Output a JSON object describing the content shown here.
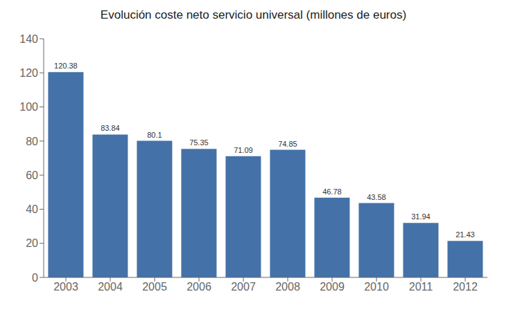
{
  "chart_data": {
    "type": "bar",
    "title": "Evolución coste neto servicio universal (millones de euros)",
    "categories": [
      "2003",
      "2004",
      "2005",
      "2006",
      "2007",
      "2008",
      "2009",
      "2010",
      "2011",
      "2012"
    ],
    "values": [
      120.38,
      83.84,
      80.1,
      75.35,
      71.09,
      74.85,
      46.78,
      43.58,
      31.94,
      21.43
    ],
    "color": "#4472a8",
    "ylim": [
      0,
      140
    ],
    "yticks": [
      0,
      20,
      40,
      60,
      80,
      100,
      120,
      140
    ],
    "grid": false,
    "data_labels": true
  }
}
